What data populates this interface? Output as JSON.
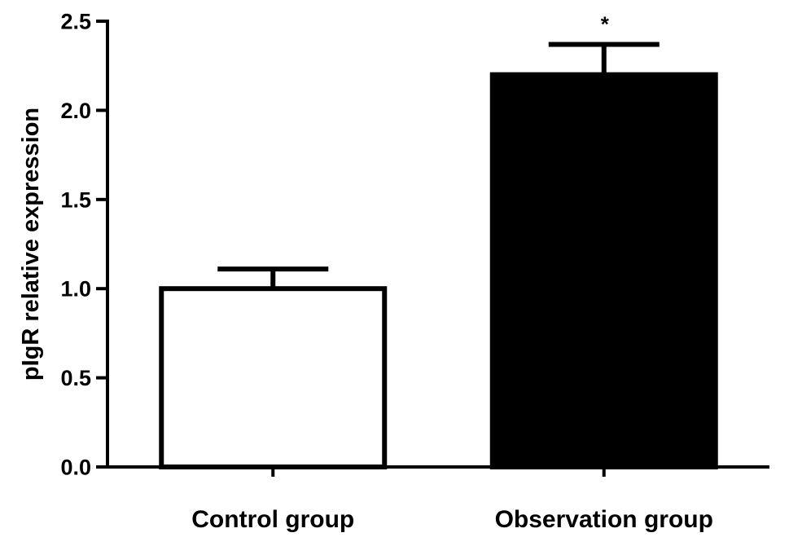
{
  "chart_data": {
    "type": "bar",
    "title": "",
    "xlabel": "",
    "ylabel": "pIgR relative expression",
    "ylim": [
      0,
      2.5
    ],
    "yticks": [
      "0.0",
      "0.5",
      "1.0",
      "1.5",
      "2.0",
      "2.5"
    ],
    "grid": false,
    "categories": [
      "Control group",
      "Observation group"
    ],
    "values": [
      1.0,
      2.2
    ],
    "errors": [
      0.11,
      0.17
    ],
    "fills": [
      "#ffffff",
      "#000000"
    ],
    "annotations": [
      "",
      "*"
    ]
  }
}
